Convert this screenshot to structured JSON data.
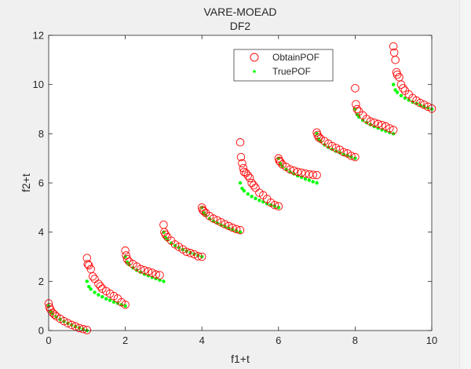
{
  "figure": {
    "background": "#f0f0f0",
    "axes_background": "#ffffff",
    "axis_color": "#262626"
  },
  "chart_data": {
    "type": "scatter",
    "title": "VARE-MOEAD",
    "subtitle": "DF2",
    "xlabel": "f1+t",
    "ylabel": "f2+t",
    "xlim": [
      0,
      10
    ],
    "ylim": [
      0,
      12
    ],
    "xticks": [
      0,
      2,
      4,
      6,
      8,
      10
    ],
    "yticks": [
      0,
      2,
      4,
      6,
      8,
      10,
      12
    ],
    "grid": false,
    "legend_position": "top-right",
    "series": [
      {
        "name": "ObtainPOF",
        "marker": "open-circle",
        "color": "#ff0000",
        "points": [
          [
            0.0,
            1.1
          ],
          [
            0.02,
            0.95
          ],
          [
            0.05,
            0.85
          ],
          [
            0.1,
            0.72
          ],
          [
            0.15,
            0.65
          ],
          [
            0.2,
            0.58
          ],
          [
            0.3,
            0.48
          ],
          [
            0.4,
            0.38
          ],
          [
            0.5,
            0.3
          ],
          [
            0.6,
            0.23
          ],
          [
            0.7,
            0.17
          ],
          [
            0.8,
            0.1
          ],
          [
            0.9,
            0.06
          ],
          [
            1.0,
            0.02
          ],
          [
            1.0,
            2.95
          ],
          [
            1.02,
            2.7
          ],
          [
            1.05,
            2.65
          ],
          [
            1.1,
            2.5
          ],
          [
            1.15,
            2.2
          ],
          [
            1.2,
            2.1
          ],
          [
            1.3,
            1.9
          ],
          [
            1.35,
            1.8
          ],
          [
            1.4,
            1.7
          ],
          [
            1.5,
            1.6
          ],
          [
            1.6,
            1.5
          ],
          [
            1.7,
            1.4
          ],
          [
            1.8,
            1.3
          ],
          [
            1.9,
            1.15
          ],
          [
            2.0,
            1.05
          ],
          [
            2.0,
            3.25
          ],
          [
            2.02,
            3.05
          ],
          [
            2.05,
            2.9
          ],
          [
            2.1,
            2.8
          ],
          [
            2.2,
            2.7
          ],
          [
            2.3,
            2.6
          ],
          [
            2.4,
            2.5
          ],
          [
            2.5,
            2.45
          ],
          [
            2.6,
            2.4
          ],
          [
            2.7,
            2.35
          ],
          [
            2.8,
            2.28
          ],
          [
            2.9,
            2.25
          ],
          [
            3.0,
            4.3
          ],
          [
            3.02,
            4.0
          ],
          [
            3.05,
            3.9
          ],
          [
            3.1,
            3.8
          ],
          [
            3.2,
            3.65
          ],
          [
            3.3,
            3.5
          ],
          [
            3.4,
            3.4
          ],
          [
            3.5,
            3.3
          ],
          [
            3.6,
            3.2
          ],
          [
            3.7,
            3.15
          ],
          [
            3.8,
            3.1
          ],
          [
            3.9,
            3.02
          ],
          [
            4.0,
            3.0
          ],
          [
            4.0,
            5.0
          ],
          [
            4.02,
            4.9
          ],
          [
            4.05,
            4.85
          ],
          [
            4.1,
            4.78
          ],
          [
            4.2,
            4.65
          ],
          [
            4.3,
            4.55
          ],
          [
            4.4,
            4.48
          ],
          [
            4.5,
            4.4
          ],
          [
            4.6,
            4.32
          ],
          [
            4.7,
            4.25
          ],
          [
            4.8,
            4.18
          ],
          [
            4.9,
            4.12
          ],
          [
            5.0,
            4.08
          ],
          [
            5.0,
            7.65
          ],
          [
            5.02,
            7.05
          ],
          [
            5.05,
            6.8
          ],
          [
            5.08,
            6.6
          ],
          [
            5.1,
            6.45
          ],
          [
            5.15,
            6.4
          ],
          [
            5.2,
            6.3
          ],
          [
            5.25,
            6.2
          ],
          [
            5.3,
            6.0
          ],
          [
            5.35,
            5.9
          ],
          [
            5.4,
            5.8
          ],
          [
            5.5,
            5.6
          ],
          [
            5.6,
            5.5
          ],
          [
            5.7,
            5.35
          ],
          [
            5.8,
            5.2
          ],
          [
            5.9,
            5.1
          ],
          [
            6.0,
            5.05
          ],
          [
            6.0,
            7.0
          ],
          [
            6.02,
            6.9
          ],
          [
            6.05,
            6.85
          ],
          [
            6.1,
            6.75
          ],
          [
            6.2,
            6.65
          ],
          [
            6.3,
            6.55
          ],
          [
            6.4,
            6.5
          ],
          [
            6.5,
            6.45
          ],
          [
            6.6,
            6.42
          ],
          [
            6.7,
            6.38
          ],
          [
            6.8,
            6.35
          ],
          [
            6.9,
            6.33
          ],
          [
            7.0,
            6.32
          ],
          [
            7.0,
            8.05
          ],
          [
            7.02,
            7.95
          ],
          [
            7.05,
            7.85
          ],
          [
            7.1,
            7.8
          ],
          [
            7.2,
            7.7
          ],
          [
            7.3,
            7.6
          ],
          [
            7.4,
            7.5
          ],
          [
            7.5,
            7.42
          ],
          [
            7.6,
            7.35
          ],
          [
            7.7,
            7.25
          ],
          [
            7.8,
            7.2
          ],
          [
            7.9,
            7.1
          ],
          [
            8.0,
            7.05
          ],
          [
            8.0,
            9.85
          ],
          [
            8.02,
            9.2
          ],
          [
            8.05,
            9.0
          ],
          [
            8.1,
            8.9
          ],
          [
            8.2,
            8.75
          ],
          [
            8.3,
            8.6
          ],
          [
            8.4,
            8.5
          ],
          [
            8.5,
            8.45
          ],
          [
            8.6,
            8.4
          ],
          [
            8.7,
            8.35
          ],
          [
            8.8,
            8.3
          ],
          [
            8.9,
            8.22
          ],
          [
            9.0,
            8.15
          ],
          [
            9.0,
            11.55
          ],
          [
            9.02,
            11.3
          ],
          [
            9.05,
            11.0
          ],
          [
            9.08,
            10.5
          ],
          [
            9.1,
            10.4
          ],
          [
            9.15,
            10.3
          ],
          [
            9.2,
            10.0
          ],
          [
            9.25,
            9.85
          ],
          [
            9.3,
            9.75
          ],
          [
            9.4,
            9.6
          ],
          [
            9.5,
            9.45
          ],
          [
            9.6,
            9.35
          ],
          [
            9.7,
            9.25
          ],
          [
            9.8,
            9.18
          ],
          [
            9.9,
            9.1
          ],
          [
            10.0,
            9.02
          ]
        ]
      },
      {
        "name": "TruePOF",
        "marker": "dot",
        "color": "#00ff00",
        "points": [
          [
            0.0,
            1.0
          ],
          [
            0.05,
            0.78
          ],
          [
            0.1,
            0.68
          ],
          [
            0.2,
            0.55
          ],
          [
            0.3,
            0.45
          ],
          [
            0.4,
            0.37
          ],
          [
            0.5,
            0.29
          ],
          [
            0.6,
            0.23
          ],
          [
            0.7,
            0.16
          ],
          [
            0.8,
            0.11
          ],
          [
            0.9,
            0.05
          ],
          [
            1.0,
            0.0
          ],
          [
            1.0,
            2.0
          ],
          [
            1.05,
            1.78
          ],
          [
            1.1,
            1.68
          ],
          [
            1.2,
            1.55
          ],
          [
            1.3,
            1.45
          ],
          [
            1.4,
            1.37
          ],
          [
            1.5,
            1.29
          ],
          [
            1.6,
            1.23
          ],
          [
            1.7,
            1.16
          ],
          [
            1.8,
            1.11
          ],
          [
            1.9,
            1.05
          ],
          [
            2.0,
            1.0
          ],
          [
            2.0,
            3.0
          ],
          [
            2.05,
            2.78
          ],
          [
            2.1,
            2.68
          ],
          [
            2.2,
            2.55
          ],
          [
            2.3,
            2.45
          ],
          [
            2.4,
            2.37
          ],
          [
            2.5,
            2.29
          ],
          [
            2.6,
            2.23
          ],
          [
            2.7,
            2.16
          ],
          [
            2.8,
            2.11
          ],
          [
            2.9,
            2.05
          ],
          [
            3.0,
            2.0
          ],
          [
            3.0,
            4.0
          ],
          [
            3.05,
            3.78
          ],
          [
            3.1,
            3.68
          ],
          [
            3.2,
            3.55
          ],
          [
            3.3,
            3.45
          ],
          [
            3.4,
            3.37
          ],
          [
            3.5,
            3.29
          ],
          [
            3.6,
            3.23
          ],
          [
            3.7,
            3.16
          ],
          [
            3.8,
            3.11
          ],
          [
            3.9,
            3.05
          ],
          [
            4.0,
            3.0
          ],
          [
            4.0,
            5.0
          ],
          [
            4.05,
            4.78
          ],
          [
            4.1,
            4.68
          ],
          [
            4.2,
            4.55
          ],
          [
            4.3,
            4.45
          ],
          [
            4.4,
            4.37
          ],
          [
            4.5,
            4.29
          ],
          [
            4.6,
            4.23
          ],
          [
            4.7,
            4.16
          ],
          [
            4.8,
            4.11
          ],
          [
            4.9,
            4.05
          ],
          [
            5.0,
            4.0
          ],
          [
            5.0,
            6.0
          ],
          [
            5.05,
            5.78
          ],
          [
            5.1,
            5.68
          ],
          [
            5.2,
            5.55
          ],
          [
            5.3,
            5.45
          ],
          [
            5.4,
            5.37
          ],
          [
            5.5,
            5.29
          ],
          [
            5.6,
            5.23
          ],
          [
            5.7,
            5.16
          ],
          [
            5.8,
            5.11
          ],
          [
            5.9,
            5.05
          ],
          [
            6.0,
            5.0
          ],
          [
            6.0,
            7.0
          ],
          [
            6.05,
            6.78
          ],
          [
            6.1,
            6.68
          ],
          [
            6.2,
            6.55
          ],
          [
            6.3,
            6.45
          ],
          [
            6.4,
            6.37
          ],
          [
            6.5,
            6.29
          ],
          [
            6.6,
            6.23
          ],
          [
            6.7,
            6.16
          ],
          [
            6.8,
            6.11
          ],
          [
            6.9,
            6.05
          ],
          [
            7.0,
            6.0
          ],
          [
            7.0,
            8.0
          ],
          [
            7.05,
            7.78
          ],
          [
            7.1,
            7.68
          ],
          [
            7.2,
            7.55
          ],
          [
            7.3,
            7.45
          ],
          [
            7.4,
            7.37
          ],
          [
            7.5,
            7.29
          ],
          [
            7.6,
            7.23
          ],
          [
            7.7,
            7.16
          ],
          [
            7.8,
            7.11
          ],
          [
            7.9,
            7.05
          ],
          [
            8.0,
            7.0
          ],
          [
            8.0,
            9.0
          ],
          [
            8.05,
            8.78
          ],
          [
            8.1,
            8.68
          ],
          [
            8.2,
            8.55
          ],
          [
            8.3,
            8.45
          ],
          [
            8.4,
            8.37
          ],
          [
            8.5,
            8.29
          ],
          [
            8.6,
            8.23
          ],
          [
            8.7,
            8.16
          ],
          [
            8.8,
            8.11
          ],
          [
            8.9,
            8.05
          ],
          [
            9.0,
            8.0
          ],
          [
            9.0,
            10.0
          ],
          [
            9.05,
            9.78
          ],
          [
            9.1,
            9.68
          ],
          [
            9.2,
            9.55
          ],
          [
            9.3,
            9.45
          ],
          [
            9.4,
            9.37
          ],
          [
            9.5,
            9.29
          ],
          [
            9.6,
            9.23
          ],
          [
            9.7,
            9.16
          ],
          [
            9.8,
            9.11
          ],
          [
            9.9,
            9.05
          ],
          [
            10.0,
            9.0
          ]
        ]
      }
    ]
  }
}
